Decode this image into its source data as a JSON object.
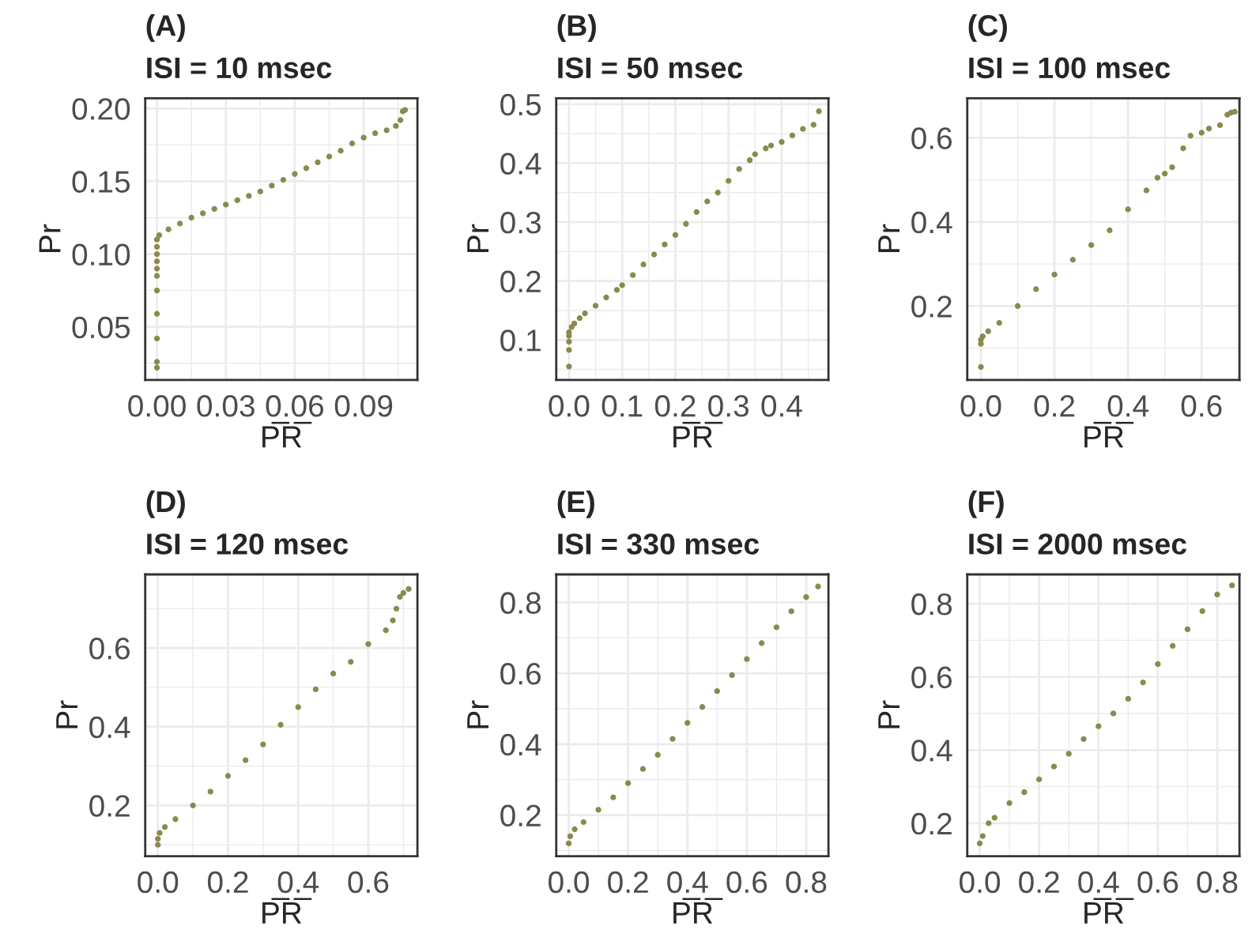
{
  "chart_data": [
    {
      "type": "scatter",
      "title": "(A)",
      "subtitle": "ISI = 10 msec",
      "xlabel": "P̅R̅",
      "ylabel": "Pr",
      "color": "#8a8a4f",
      "marker": "circle",
      "grid": true,
      "xlim": [
        -0.0051,
        0.1134
      ],
      "ylim": [
        0.0135,
        0.207
      ],
      "xticks": [
        {
          "value": 0,
          "label": "0.00"
        },
        {
          "value": 0.03,
          "label": "0.03"
        },
        {
          "value": 0.06,
          "label": "0.06"
        },
        {
          "value": 0.09,
          "label": "0.09"
        }
      ],
      "yticks": [
        {
          "value": 0.05,
          "label": "0.05"
        },
        {
          "value": 0.1,
          "label": "0.10"
        },
        {
          "value": 0.15,
          "label": "0.15"
        },
        {
          "value": 0.2,
          "label": "0.20"
        }
      ],
      "x": [
        0,
        0,
        0,
        0,
        0,
        0,
        0,
        0,
        0,
        0,
        0,
        0.001,
        0.005,
        0.01,
        0.015,
        0.02,
        0.025,
        0.03,
        0.035,
        0.04,
        0.045,
        0.05,
        0.055,
        0.06,
        0.065,
        0.07,
        0.075,
        0.08,
        0.085,
        0.09,
        0.095,
        0.1,
        0.104,
        0.106,
        0.107,
        0.108
      ],
      "values": [
        0.022,
        0.026,
        0.042,
        0.059,
        0.075,
        0.085,
        0.09,
        0.095,
        0.1,
        0.105,
        0.11,
        0.113,
        0.117,
        0.121,
        0.125,
        0.128,
        0.131,
        0.134,
        0.137,
        0.14,
        0.143,
        0.147,
        0.151,
        0.155,
        0.159,
        0.163,
        0.167,
        0.171,
        0.176,
        0.18,
        0.183,
        0.185,
        0.188,
        0.192,
        0.198,
        0.199
      ]
    },
    {
      "type": "scatter",
      "title": "(B)",
      "subtitle": "ISI = 50 msec",
      "xlabel": "P̅R̅",
      "ylabel": "Pr",
      "color": "#8a8a4f",
      "marker": "circle",
      "grid": true,
      "xlim": [
        -0.024,
        0.488
      ],
      "ylim": [
        0.032,
        0.51
      ],
      "xticks": [
        {
          "value": 0,
          "label": "0.0"
        },
        0.1,
        0.2,
        0.3,
        0.4
      ],
      "yticks": [
        0.1,
        0.2,
        0.3,
        0.4,
        0.5
      ],
      "x": [
        0,
        0,
        0,
        0,
        0,
        0.005,
        0.01,
        0.02,
        0.03,
        0.05,
        0.07,
        0.09,
        0.1,
        0.12,
        0.14,
        0.16,
        0.18,
        0.2,
        0.22,
        0.24,
        0.26,
        0.28,
        0.3,
        0.32,
        0.34,
        0.35,
        0.37,
        0.38,
        0.4,
        0.42,
        0.44,
        0.46,
        0.47
      ],
      "values": [
        0.055,
        0.083,
        0.097,
        0.107,
        0.113,
        0.122,
        0.128,
        0.137,
        0.145,
        0.158,
        0.172,
        0.185,
        0.193,
        0.21,
        0.228,
        0.245,
        0.262,
        0.278,
        0.297,
        0.317,
        0.335,
        0.35,
        0.37,
        0.39,
        0.405,
        0.415,
        0.425,
        0.43,
        0.436,
        0.447,
        0.458,
        0.465,
        0.488
      ]
    },
    {
      "type": "scatter",
      "title": "(C)",
      "subtitle": "ISI = 100 msec",
      "xlabel": "P̅R̅",
      "ylabel": "Pr",
      "color": "#8a8a4f",
      "marker": "circle",
      "grid": true,
      "xlim": [
        -0.037,
        0.703
      ],
      "ylim": [
        0.024,
        0.694
      ],
      "xticks": [
        {
          "value": 0,
          "label": "0.0"
        },
        0.2,
        0.4,
        0.6
      ],
      "yticks": [
        0.2,
        0.4,
        0.6
      ],
      "x": [
        0,
        0,
        0,
        0.005,
        0.02,
        0.05,
        0.1,
        0.15,
        0.2,
        0.25,
        0.3,
        0.35,
        0.4,
        0.45,
        0.48,
        0.5,
        0.52,
        0.55,
        0.57,
        0.6,
        0.62,
        0.65,
        0.67,
        0.68,
        0.69
      ],
      "values": [
        0.055,
        0.11,
        0.12,
        0.128,
        0.14,
        0.16,
        0.2,
        0.24,
        0.275,
        0.31,
        0.345,
        0.38,
        0.43,
        0.475,
        0.505,
        0.515,
        0.53,
        0.575,
        0.605,
        0.612,
        0.622,
        0.63,
        0.655,
        0.66,
        0.662
      ]
    },
    {
      "type": "scatter",
      "title": "(D)",
      "subtitle": "ISI = 120 msec",
      "xlabel": "P̅R̅",
      "ylabel": "Pr",
      "color": "#8a8a4f",
      "marker": "circle",
      "grid": true,
      "xlim": [
        -0.036,
        0.74
      ],
      "ylim": [
        0.071,
        0.787
      ],
      "xticks": [
        {
          "value": 0,
          "label": "0.0"
        },
        0.2,
        0.4,
        0.6
      ],
      "yticks": [
        0.2,
        0.4,
        0.6
      ],
      "x": [
        0,
        0,
        0.005,
        0.02,
        0.05,
        0.1,
        0.15,
        0.2,
        0.25,
        0.3,
        0.35,
        0.4,
        0.45,
        0.5,
        0.55,
        0.6,
        0.65,
        0.67,
        0.68,
        0.69,
        0.7,
        0.715
      ],
      "values": [
        0.1,
        0.115,
        0.13,
        0.145,
        0.165,
        0.2,
        0.235,
        0.275,
        0.315,
        0.355,
        0.405,
        0.45,
        0.495,
        0.535,
        0.565,
        0.61,
        0.645,
        0.67,
        0.7,
        0.73,
        0.74,
        0.75
      ]
    },
    {
      "type": "scatter",
      "title": "(E)",
      "subtitle": "ISI = 330 msec",
      "xlabel": "P̅R̅",
      "ylabel": "Pr",
      "color": "#8a8a4f",
      "marker": "circle",
      "grid": true,
      "xlim": [
        -0.042,
        0.875
      ],
      "ylim": [
        0.084,
        0.879
      ],
      "xticks": [
        {
          "value": 0,
          "label": "0.0"
        },
        0.2,
        0.4,
        0.6,
        0.8
      ],
      "yticks": [
        0.2,
        0.4,
        0.6,
        0.8
      ],
      "x": [
        0,
        0.005,
        0.02,
        0.05,
        0.1,
        0.15,
        0.2,
        0.25,
        0.3,
        0.35,
        0.4,
        0.45,
        0.5,
        0.55,
        0.6,
        0.65,
        0.7,
        0.75,
        0.8,
        0.84
      ],
      "values": [
        0.12,
        0.14,
        0.16,
        0.18,
        0.215,
        0.25,
        0.29,
        0.33,
        0.37,
        0.415,
        0.46,
        0.505,
        0.55,
        0.595,
        0.64,
        0.685,
        0.73,
        0.775,
        0.815,
        0.845
      ]
    },
    {
      "type": "scatter",
      "title": "(F)",
      "subtitle": "ISI = 2000 msec",
      "xlabel": "P̅R̅",
      "ylabel": "Pr",
      "color": "#8a8a4f",
      "marker": "circle",
      "grid": true,
      "xlim": [
        -0.042,
        0.875
      ],
      "ylim": [
        0.11,
        0.88
      ],
      "xticks": [
        {
          "value": 0,
          "label": "0.0"
        },
        0.2,
        0.4,
        0.6,
        0.8
      ],
      "yticks": [
        0.2,
        0.4,
        0.6,
        0.8
      ],
      "x": [
        0,
        0.01,
        0.03,
        0.05,
        0.1,
        0.15,
        0.2,
        0.25,
        0.3,
        0.35,
        0.4,
        0.45,
        0.5,
        0.55,
        0.6,
        0.65,
        0.7,
        0.75,
        0.8,
        0.85
      ],
      "values": [
        0.145,
        0.165,
        0.2,
        0.215,
        0.255,
        0.285,
        0.32,
        0.355,
        0.39,
        0.43,
        0.465,
        0.5,
        0.54,
        0.585,
        0.635,
        0.685,
        0.73,
        0.78,
        0.825,
        0.85
      ]
    }
  ]
}
